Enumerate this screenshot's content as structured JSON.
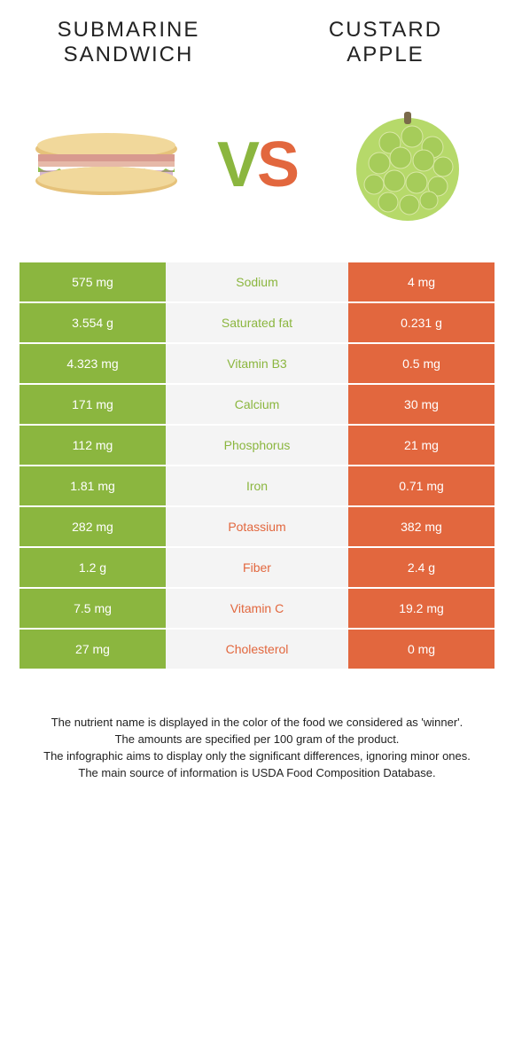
{
  "food_left": {
    "name_line1": "SUBMARINE",
    "name_line2": "SANDWICH",
    "color": "#8bb63f"
  },
  "food_right": {
    "name_line1": "CUSTARD",
    "name_line2": "APPLE",
    "color": "#e2673e"
  },
  "vs_text_v": "V",
  "vs_text_s": "S",
  "colors": {
    "left_bar": "#8bb63f",
    "right_bar": "#e2673e",
    "mid_bg": "#f4f4f4",
    "label_left_color": "#8bb63f",
    "label_right_color": "#e2673e",
    "value_text": "#ffffff"
  },
  "rows": [
    {
      "left": "575 mg",
      "label": "Sodium",
      "right": "4 mg",
      "winner": "left"
    },
    {
      "left": "3.554 g",
      "label": "Saturated fat",
      "right": "0.231 g",
      "winner": "left"
    },
    {
      "left": "4.323 mg",
      "label": "Vitamin B3",
      "right": "0.5 mg",
      "winner": "left"
    },
    {
      "left": "171 mg",
      "label": "Calcium",
      "right": "30 mg",
      "winner": "left"
    },
    {
      "left": "112 mg",
      "label": "Phosphorus",
      "right": "21 mg",
      "winner": "left"
    },
    {
      "left": "1.81 mg",
      "label": "Iron",
      "right": "0.71 mg",
      "winner": "left"
    },
    {
      "left": "282 mg",
      "label": "Potassium",
      "right": "382 mg",
      "winner": "right"
    },
    {
      "left": "1.2 g",
      "label": "Fiber",
      "right": "2.4 g",
      "winner": "right"
    },
    {
      "left": "7.5 mg",
      "label": "Vitamin C",
      "right": "19.2 mg",
      "winner": "right"
    },
    {
      "left": "27 mg",
      "label": "Cholesterol",
      "right": "0 mg",
      "winner": "right"
    }
  ],
  "footer": {
    "l1": "The nutrient name is displayed in the color of the food we considered as 'winner'.",
    "l2": "The amounts are specified per 100 gram of the product.",
    "l3": "The infographic aims to display only the significant differences, ignoring minor ones.",
    "l4": "The main source of information is USDA Food Composition Database."
  }
}
